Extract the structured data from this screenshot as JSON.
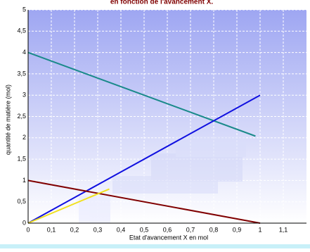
{
  "chart_data": {
    "type": "line",
    "title": "en fonction de l'avancement X.",
    "x_label": "Etat d'avancement  X en mol",
    "y_label": "quantité de matière (mol)",
    "xlim": [
      0,
      1.2
    ],
    "ylim": [
      0,
      5
    ],
    "xticks": [
      0,
      {
        "value": 0.1,
        "label": "0,1"
      },
      {
        "value": 0.2,
        "label": "0,2"
      },
      {
        "value": 0.3,
        "label": "0,3"
      },
      {
        "value": 0.4,
        "label": "0,4"
      },
      {
        "value": 0.5,
        "label": "0,5"
      },
      {
        "value": 0.6,
        "label": "0,6"
      },
      {
        "value": 0.7,
        "label": "0,7"
      },
      {
        "value": 0.8,
        "label": "0,8"
      },
      {
        "value": 0.9,
        "label": "0,9"
      },
      1,
      {
        "value": 1.1,
        "label": "1,1"
      }
    ],
    "yticks": [
      0,
      {
        "value": 0.5,
        "label": "0,5"
      },
      1,
      {
        "value": 1.5,
        "label": "1,5"
      },
      2,
      {
        "value": 2.5,
        "label": "2,5"
      },
      3,
      {
        "value": 3.5,
        "label": "3,5"
      },
      4,
      {
        "value": 4.5,
        "label": "4,5"
      },
      5
    ],
    "grid": true,
    "series": [
      {
        "color": "#1a8a8a",
        "x": [
          0,
          0.98
        ],
        "values": [
          4,
          2.04
        ]
      },
      {
        "color": "#1010e0",
        "x": [
          0,
          1
        ],
        "values": [
          0,
          3
        ]
      },
      {
        "color": "#800000",
        "x": [
          0,
          1
        ],
        "values": [
          1,
          0
        ]
      },
      {
        "color": "#f0e020",
        "x": [
          0,
          0.35
        ],
        "values": [
          0,
          0.8
        ]
      }
    ]
  }
}
